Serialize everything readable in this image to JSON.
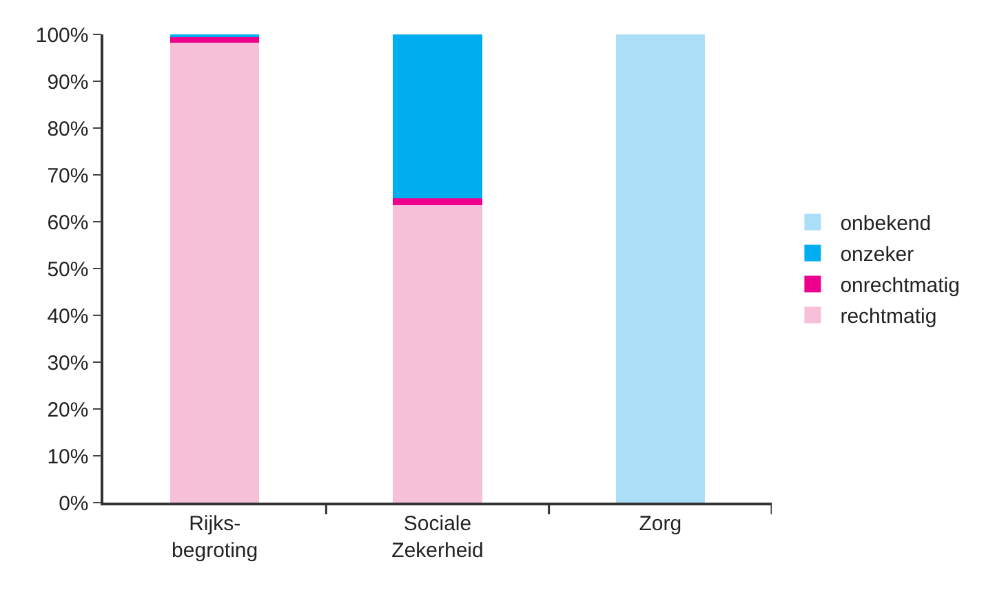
{
  "chart_data": {
    "type": "bar",
    "stacked": true,
    "categories": [
      "Rijks-\nbegroting",
      "Sociale\nZekerheid",
      "Zorg"
    ],
    "series": [
      {
        "name": "rechtmatig",
        "color": "#f5c0d8",
        "values": [
          98.2,
          63.5,
          0
        ]
      },
      {
        "name": "onrechtmatig",
        "color": "#ec008c",
        "values": [
          1.2,
          1.5,
          0
        ]
      },
      {
        "name": "onzeker",
        "color": "#00adef",
        "values": [
          0.6,
          35.0,
          0
        ]
      },
      {
        "name": "onbekend",
        "color": "#abdff8",
        "values": [
          0,
          0,
          100
        ]
      }
    ],
    "ylim": [
      0,
      100
    ],
    "yticks": [
      {
        "value": 0,
        "label": "0%"
      },
      {
        "value": 10,
        "label": "10%"
      },
      {
        "value": 20,
        "label": "20%"
      },
      {
        "value": 30,
        "label": "30%"
      },
      {
        "value": 40,
        "label": "40%"
      },
      {
        "value": 50,
        "label": "50%"
      },
      {
        "value": 60,
        "label": "60%"
      },
      {
        "value": 70,
        "label": "70%"
      },
      {
        "value": 80,
        "label": "80%"
      },
      {
        "value": 90,
        "label": "90%"
      },
      {
        "value": 100,
        "label": "100%"
      }
    ],
    "legend": "right"
  }
}
